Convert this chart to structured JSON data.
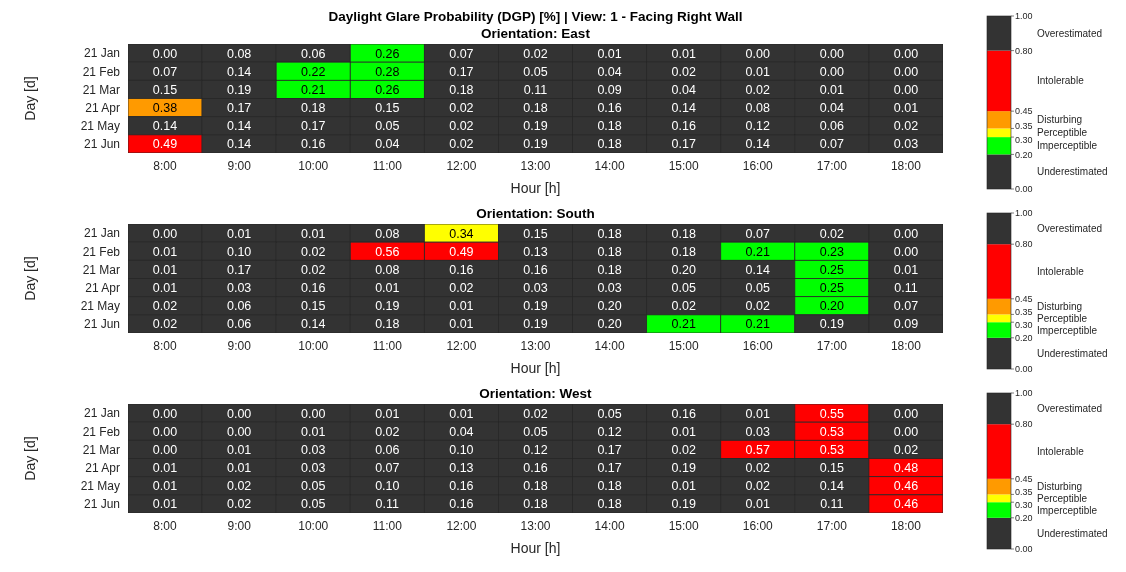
{
  "chart_data": [
    {
      "type": "heatmap",
      "title": "Daylight Glare Probability (DGP) [%]  | View: 1 - Facing Right Wall",
      "subtitle": "Orientation: East",
      "xlabel": "Hour [h]",
      "ylabel": "Day [d]",
      "categories": [
        "8:00",
        "9:00",
        "10:00",
        "11:00",
        "12:00",
        "13:00",
        "14:00",
        "15:00",
        "16:00",
        "17:00",
        "18:00"
      ],
      "y_categories": [
        "21 Jan",
        "21 Feb",
        "21 Mar",
        "21 Apr",
        "21 May",
        "21 Jun"
      ],
      "cells": [
        [
          0.0,
          0.08,
          0.06,
          0.26,
          0.07,
          0.02,
          0.01,
          0.01,
          0.0,
          0.0,
          0.0
        ],
        [
          0.07,
          0.14,
          0.22,
          0.28,
          0.17,
          0.05,
          0.04,
          0.02,
          0.01,
          0.0,
          0.0
        ],
        [
          0.15,
          0.19,
          0.21,
          0.26,
          0.18,
          0.11,
          0.09,
          0.04,
          0.02,
          0.01,
          0.0
        ],
        [
          0.38,
          0.17,
          0.18,
          0.15,
          0.02,
          0.18,
          0.16,
          0.14,
          0.08,
          0.04,
          0.01
        ],
        [
          0.14,
          0.14,
          0.17,
          0.05,
          0.02,
          0.19,
          0.18,
          0.16,
          0.12,
          0.06,
          0.02
        ],
        [
          0.49,
          0.14,
          0.16,
          0.04,
          0.02,
          0.19,
          0.18,
          0.17,
          0.14,
          0.07,
          0.03
        ]
      ],
      "cell_labels": [
        [
          "0.00",
          "0.08",
          "0.06",
          "0.26",
          "0.07",
          "0.02",
          "0.01",
          "0.01",
          "0.00",
          "0.00",
          "0.00"
        ],
        [
          "0.07",
          "0.14",
          "0.22",
          "0.28",
          "0.17",
          "0.05",
          "0.04",
          "0.02",
          "0.01",
          "0.00",
          "0.00"
        ],
        [
          "0.15",
          "0.19",
          "0.21",
          "0.26",
          "0.18",
          "0.11",
          "0.09",
          "0.04",
          "0.02",
          "0.01",
          "0.00"
        ],
        [
          "0.38",
          "0.17",
          "0.18",
          "0.15",
          "0.02",
          "0.18",
          "0.16",
          "0.14",
          "0.08",
          "0.04",
          "0.01"
        ],
        [
          "0.14",
          "0.14",
          "0.17",
          "0.05",
          "0.02",
          "0.19",
          "0.18",
          "0.16",
          "0.12",
          "0.06",
          "0.02"
        ],
        [
          "0.49",
          "0.14",
          "0.16",
          "0.04",
          "0.02",
          "0.19",
          "0.18",
          "0.17",
          "0.14",
          "0.07",
          "0.03"
        ]
      ],
      "clim": [
        0,
        1
      ],
      "cticks": [
        {
          "value": 0,
          "label": "0.00"
        },
        {
          "value": 0.2,
          "label": "0.20"
        },
        {
          "value": 0.3,
          "label": "0.30"
        },
        {
          "value": 0.35,
          "label": "0.35"
        },
        {
          "value": 0.45,
          "label": "0.45"
        },
        {
          "value": 0.8,
          "label": "0.80"
        },
        {
          "value": 1,
          "label": "1.00"
        }
      ],
      "colors": [
        "#333333",
        "#00ff00",
        "#ffff00",
        "#ff9a00",
        "#ff0000",
        "#333333"
      ],
      "annotations": [
        "Underestimated",
        "Imperceptible",
        "Perceptible",
        "Disturbing",
        "Intolerable",
        "Overestimated"
      ]
    },
    {
      "type": "heatmap",
      "title": "Orientation: South",
      "xlabel": "Hour [h]",
      "ylabel": "Day [d]",
      "categories": [
        "8:00",
        "9:00",
        "10:00",
        "11:00",
        "12:00",
        "13:00",
        "14:00",
        "15:00",
        "16:00",
        "17:00",
        "18:00"
      ],
      "y_categories": [
        "21 Jan",
        "21 Feb",
        "21 Mar",
        "21 Apr",
        "21 May",
        "21 Jun"
      ],
      "cells": [
        [
          0.0,
          0.01,
          0.01,
          0.08,
          0.34,
          0.15,
          0.18,
          0.18,
          0.07,
          0.02,
          0.0
        ],
        [
          0.01,
          0.1,
          0.02,
          0.56,
          0.49,
          0.13,
          0.18,
          0.18,
          0.21,
          0.23,
          0.0
        ],
        [
          0.01,
          0.17,
          0.02,
          0.08,
          0.16,
          0.16,
          0.18,
          0.199,
          0.14,
          0.25,
          0.01
        ],
        [
          0.01,
          0.03,
          0.16,
          0.01,
          0.02,
          0.03,
          0.03,
          0.05,
          0.05,
          0.25,
          0.11
        ],
        [
          0.02,
          0.06,
          0.15,
          0.19,
          0.01,
          0.19,
          0.199,
          0.02,
          0.02,
          0.2,
          0.07
        ],
        [
          0.02,
          0.06,
          0.14,
          0.18,
          0.01,
          0.19,
          0.199,
          0.21,
          0.21,
          0.19,
          0.09
        ]
      ],
      "cell_labels": [
        [
          "0.00",
          "0.01",
          "0.01",
          "0.08",
          "0.34",
          "0.15",
          "0.18",
          "0.18",
          "0.07",
          "0.02",
          "0.00"
        ],
        [
          "0.01",
          "0.10",
          "0.02",
          "0.56",
          "0.49",
          "0.13",
          "0.18",
          "0.18",
          "0.21",
          "0.23",
          "0.00"
        ],
        [
          "0.01",
          "0.17",
          "0.02",
          "0.08",
          "0.16",
          "0.16",
          "0.18",
          "0.20",
          "0.14",
          "0.25",
          "0.01"
        ],
        [
          "0.01",
          "0.03",
          "0.16",
          "0.01",
          "0.02",
          "0.03",
          "0.03",
          "0.05",
          "0.05",
          "0.25",
          "0.11"
        ],
        [
          "0.02",
          "0.06",
          "0.15",
          "0.19",
          "0.01",
          "0.19",
          "0.20",
          "0.02",
          "0.02",
          "0.20",
          "0.07"
        ],
        [
          "0.02",
          "0.06",
          "0.14",
          "0.18",
          "0.01",
          "0.19",
          "0.20",
          "0.21",
          "0.21",
          "0.19",
          "0.09"
        ]
      ],
      "clim": [
        0,
        1
      ],
      "cticks": [
        {
          "value": 0,
          "label": "0.00"
        },
        {
          "value": 0.2,
          "label": "0.20"
        },
        {
          "value": 0.3,
          "label": "0.30"
        },
        {
          "value": 0.35,
          "label": "0.35"
        },
        {
          "value": 0.45,
          "label": "0.45"
        },
        {
          "value": 0.8,
          "label": "0.80"
        },
        {
          "value": 1,
          "label": "1.00"
        }
      ],
      "colors": [
        "#333333",
        "#00ff00",
        "#ffff00",
        "#ff9a00",
        "#ff0000",
        "#333333"
      ],
      "annotations": [
        "Underestimated",
        "Imperceptible",
        "Perceptible",
        "Disturbing",
        "Intolerable",
        "Overestimated"
      ]
    },
    {
      "type": "heatmap",
      "title": "Orientation: West",
      "xlabel": "Hour [h]",
      "ylabel": "Day [d]",
      "categories": [
        "8:00",
        "9:00",
        "10:00",
        "11:00",
        "12:00",
        "13:00",
        "14:00",
        "15:00",
        "16:00",
        "17:00",
        "18:00"
      ],
      "y_categories": [
        "21 Jan",
        "21 Feb",
        "21 Mar",
        "21 Apr",
        "21 May",
        "21 Jun"
      ],
      "cells": [
        [
          0.0,
          0.0,
          0.0,
          0.01,
          0.01,
          0.02,
          0.05,
          0.16,
          0.01,
          0.55,
          0.0
        ],
        [
          0.0,
          0.0,
          0.01,
          0.02,
          0.04,
          0.05,
          0.12,
          0.01,
          0.03,
          0.53,
          0.0
        ],
        [
          0.0,
          0.01,
          0.03,
          0.06,
          0.1,
          0.12,
          0.17,
          0.02,
          0.57,
          0.53,
          0.02
        ],
        [
          0.01,
          0.01,
          0.03,
          0.07,
          0.13,
          0.16,
          0.17,
          0.19,
          0.02,
          0.15,
          0.48
        ],
        [
          0.01,
          0.02,
          0.05,
          0.1,
          0.16,
          0.18,
          0.18,
          0.01,
          0.02,
          0.14,
          0.46
        ],
        [
          0.01,
          0.02,
          0.05,
          0.11,
          0.16,
          0.18,
          0.18,
          0.19,
          0.01,
          0.11,
          0.46
        ]
      ],
      "cell_labels": [
        [
          "0.00",
          "0.00",
          "0.00",
          "0.01",
          "0.01",
          "0.02",
          "0.05",
          "0.16",
          "0.01",
          "0.55",
          "0.00"
        ],
        [
          "0.00",
          "0.00",
          "0.01",
          "0.02",
          "0.04",
          "0.05",
          "0.12",
          "0.01",
          "0.03",
          "0.53",
          "0.00"
        ],
        [
          "0.00",
          "0.01",
          "0.03",
          "0.06",
          "0.10",
          "0.12",
          "0.17",
          "0.02",
          "0.57",
          "0.53",
          "0.02"
        ],
        [
          "0.01",
          "0.01",
          "0.03",
          "0.07",
          "0.13",
          "0.16",
          "0.17",
          "0.19",
          "0.02",
          "0.15",
          "0.48"
        ],
        [
          "0.01",
          "0.02",
          "0.05",
          "0.10",
          "0.16",
          "0.18",
          "0.18",
          "0.01",
          "0.02",
          "0.14",
          "0.46"
        ],
        [
          "0.01",
          "0.02",
          "0.05",
          "0.11",
          "0.16",
          "0.18",
          "0.18",
          "0.19",
          "0.01",
          "0.11",
          "0.46"
        ]
      ],
      "clim": [
        0,
        1
      ],
      "cticks": [
        {
          "value": 0,
          "label": "0.00"
        },
        {
          "value": 0.2,
          "label": "0.20"
        },
        {
          "value": 0.3,
          "label": "0.30"
        },
        {
          "value": 0.35,
          "label": "0.35"
        },
        {
          "value": 0.45,
          "label": "0.45"
        },
        {
          "value": 0.8,
          "label": "0.80"
        },
        {
          "value": 1,
          "label": "1.00"
        }
      ],
      "colors": [
        "#333333",
        "#00ff00",
        "#ffff00",
        "#ff9a00",
        "#ff0000",
        "#333333"
      ],
      "annotations": [
        "Underestimated",
        "Imperceptible",
        "Perceptible",
        "Disturbing",
        "Intolerable",
        "Overestimated"
      ]
    }
  ]
}
